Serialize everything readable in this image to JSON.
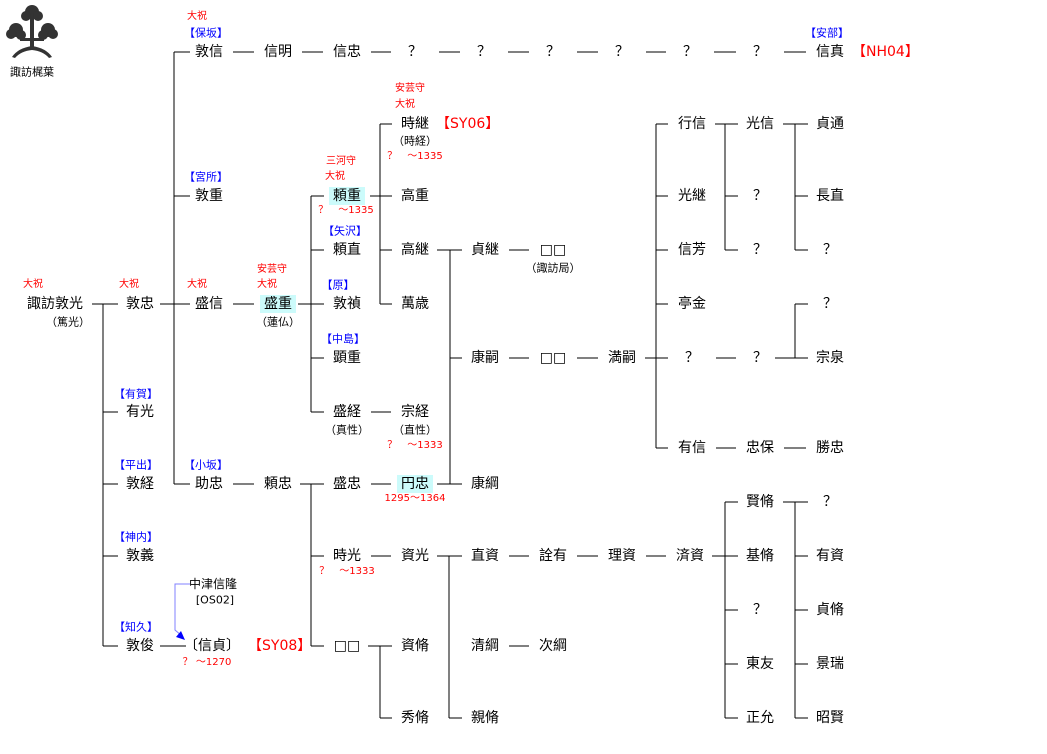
{
  "crest": {
    "label": "諏訪梶葉",
    "icon": "kaji-leaf-crest"
  },
  "colors": {
    "office_title": "#ff0000",
    "clan_name": "#0000ff",
    "highlight": "#ccfbfb",
    "adoption_arrow": "#8080ff"
  },
  "nodes": [
    "諏訪敦光",
    "敦忠",
    "有光",
    "敦経",
    "敦義",
    "敦俊",
    "敦信",
    "信明",
    "信忠",
    "？",
    "？",
    "？",
    "？",
    "？",
    "？",
    "信真",
    "敦重",
    "盛信",
    "盛重",
    "頼重",
    "頼直",
    "敦禎",
    "顕重",
    "盛経",
    "時継",
    "高重",
    "高継",
    "萬歳",
    "宗経",
    "貞継",
    "□□",
    "康嗣",
    "□□",
    "満嗣",
    "行信",
    "光継",
    "信芳",
    "亭金",
    "？",
    "有信",
    "光信",
    "？",
    "？",
    "貞通",
    "長直",
    "？",
    "？",
    "？",
    "宗泉",
    "忠保",
    "勝忠",
    "助忠",
    "頼忠",
    "盛忠",
    "円忠",
    "時光",
    "資光",
    "□□",
    "資脩",
    "秀脩",
    "直資",
    "清綱",
    "親脩",
    "次綱",
    "詮有",
    "理資",
    "済資",
    "賢脩",
    "基脩",
    "？",
    "東友",
    "正允",
    "？",
    "有資",
    "貞脩",
    "景瑞",
    "昭賢",
    "〔信貞〕",
    "中津信隆",
    "康綱"
  ],
  "titles": [
    "大祝",
    "大祝",
    "大祝",
    "大祝",
    "安芸守",
    "大祝",
    "三河守",
    "大祝",
    "安芸守",
    "大祝"
  ],
  "dates": [
    "？　～1335",
    "？　～1335",
    "？　～1333",
    "1295～1364",
    "？　～1333",
    "？ ～1270"
  ],
  "clans": [
    "【保坂】",
    "【安部】",
    "【宮所】",
    "【矢沢】",
    "【原】",
    "【中島】",
    "【有賀】",
    "【平出】",
    "【神内】",
    "【知久】",
    "【小坂】"
  ],
  "aliases": [
    "（篤光）",
    "（蓮仏）",
    "（時経）",
    "（真性）",
    "（直性）",
    "（諏訪局）",
    "[OS02]"
  ],
  "codes": [
    "【NH04】",
    "【SY06】",
    "【SY08】"
  ]
}
